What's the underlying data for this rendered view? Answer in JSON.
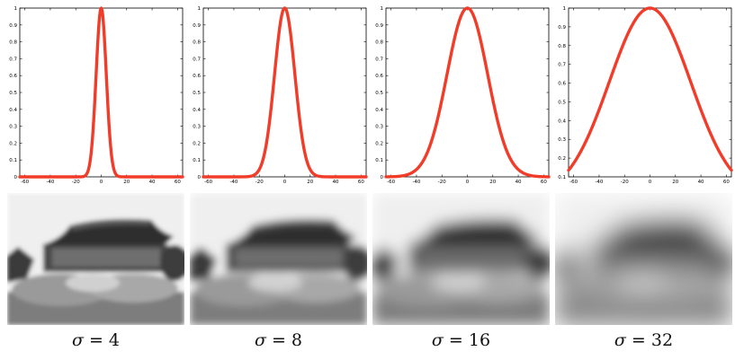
{
  "chart_data": [
    {
      "type": "line",
      "sigma": 4,
      "x_ticks": [
        -60,
        -40,
        -20,
        0,
        20,
        40,
        60
      ],
      "y_ticks": [
        0,
        0.1,
        0.2,
        0.3,
        0.4,
        0.5,
        0.6,
        0.7,
        0.8,
        0.9,
        1
      ],
      "y_tick_labels": [
        "0",
        "0.1",
        "0.2",
        "0.3",
        "0.4",
        "0.5",
        "0.6",
        "0.7",
        "0.8",
        "0.9",
        "1"
      ],
      "xlim": [
        -64,
        64
      ],
      "ylim": [
        0,
        1
      ],
      "series": [
        {
          "function": "gaussian",
          "sigma": 4,
          "peak": 1,
          "color": "#f23c2a"
        }
      ]
    },
    {
      "type": "line",
      "sigma": 8,
      "x_ticks": [
        -60,
        -40,
        -20,
        0,
        20,
        40,
        60
      ],
      "y_ticks": [
        0,
        0.1,
        0.2,
        0.3,
        0.4,
        0.5,
        0.6,
        0.7,
        0.8,
        0.9,
        1
      ],
      "y_tick_labels": [
        "0",
        "0.1",
        "0.2",
        "0.3",
        "0.4",
        "0.5",
        "0.6",
        "0.7",
        "0.8",
        "0.9",
        "1"
      ],
      "xlim": [
        -64,
        64
      ],
      "ylim": [
        0,
        1
      ],
      "series": [
        {
          "function": "gaussian",
          "sigma": 8,
          "peak": 1,
          "color": "#f23c2a"
        }
      ]
    },
    {
      "type": "line",
      "sigma": 16,
      "x_ticks": [
        -60,
        -40,
        -20,
        0,
        20,
        40,
        60
      ],
      "y_ticks": [
        0,
        0.1,
        0.2,
        0.3,
        0.4,
        0.5,
        0.6,
        0.7,
        0.8,
        0.9,
        1
      ],
      "y_tick_labels": [
        "0",
        "0.1",
        "0.2",
        "0.3",
        "0.4",
        "0.5",
        "0.6",
        "0.7",
        "0.8",
        "0.9",
        "1"
      ],
      "xlim": [
        -64,
        64
      ],
      "ylim": [
        0,
        1
      ],
      "series": [
        {
          "function": "gaussian",
          "sigma": 16,
          "peak": 1,
          "color": "#f23c2a"
        }
      ]
    },
    {
      "type": "line",
      "sigma": 32,
      "x_ticks": [
        -60,
        -40,
        -20,
        0,
        20,
        40,
        60
      ],
      "y_ticks": [
        0.1,
        0.2,
        0.3,
        0.4,
        0.5,
        0.6,
        0.7,
        0.8,
        0.9,
        1
      ],
      "y_tick_labels": [
        "0.1",
        "0.2",
        "0.3",
        "0.4",
        "0.5",
        "0.6",
        "0.7",
        "0.8",
        "0.9",
        "1"
      ],
      "xlim": [
        -64,
        64
      ],
      "ylim": [
        0.1,
        1
      ],
      "series": [
        {
          "function": "gaussian",
          "sigma": 32,
          "peak": 1,
          "color": "#f23c2a"
        }
      ]
    }
  ],
  "captions": [
    {
      "symbol": "σ",
      "rest": " = 4"
    },
    {
      "symbol": "σ",
      "rest": " = 8"
    },
    {
      "symbol": "σ",
      "rest": " = 16"
    },
    {
      "symbol": "σ",
      "rest": " = 32"
    }
  ],
  "photos": [
    {
      "blur": 2.5
    },
    {
      "blur": 4.5
    },
    {
      "blur": 8
    },
    {
      "blur": 14
    }
  ],
  "colors": {
    "curve": "#f23c2a",
    "axis": "#000000",
    "background": "#ffffff"
  }
}
